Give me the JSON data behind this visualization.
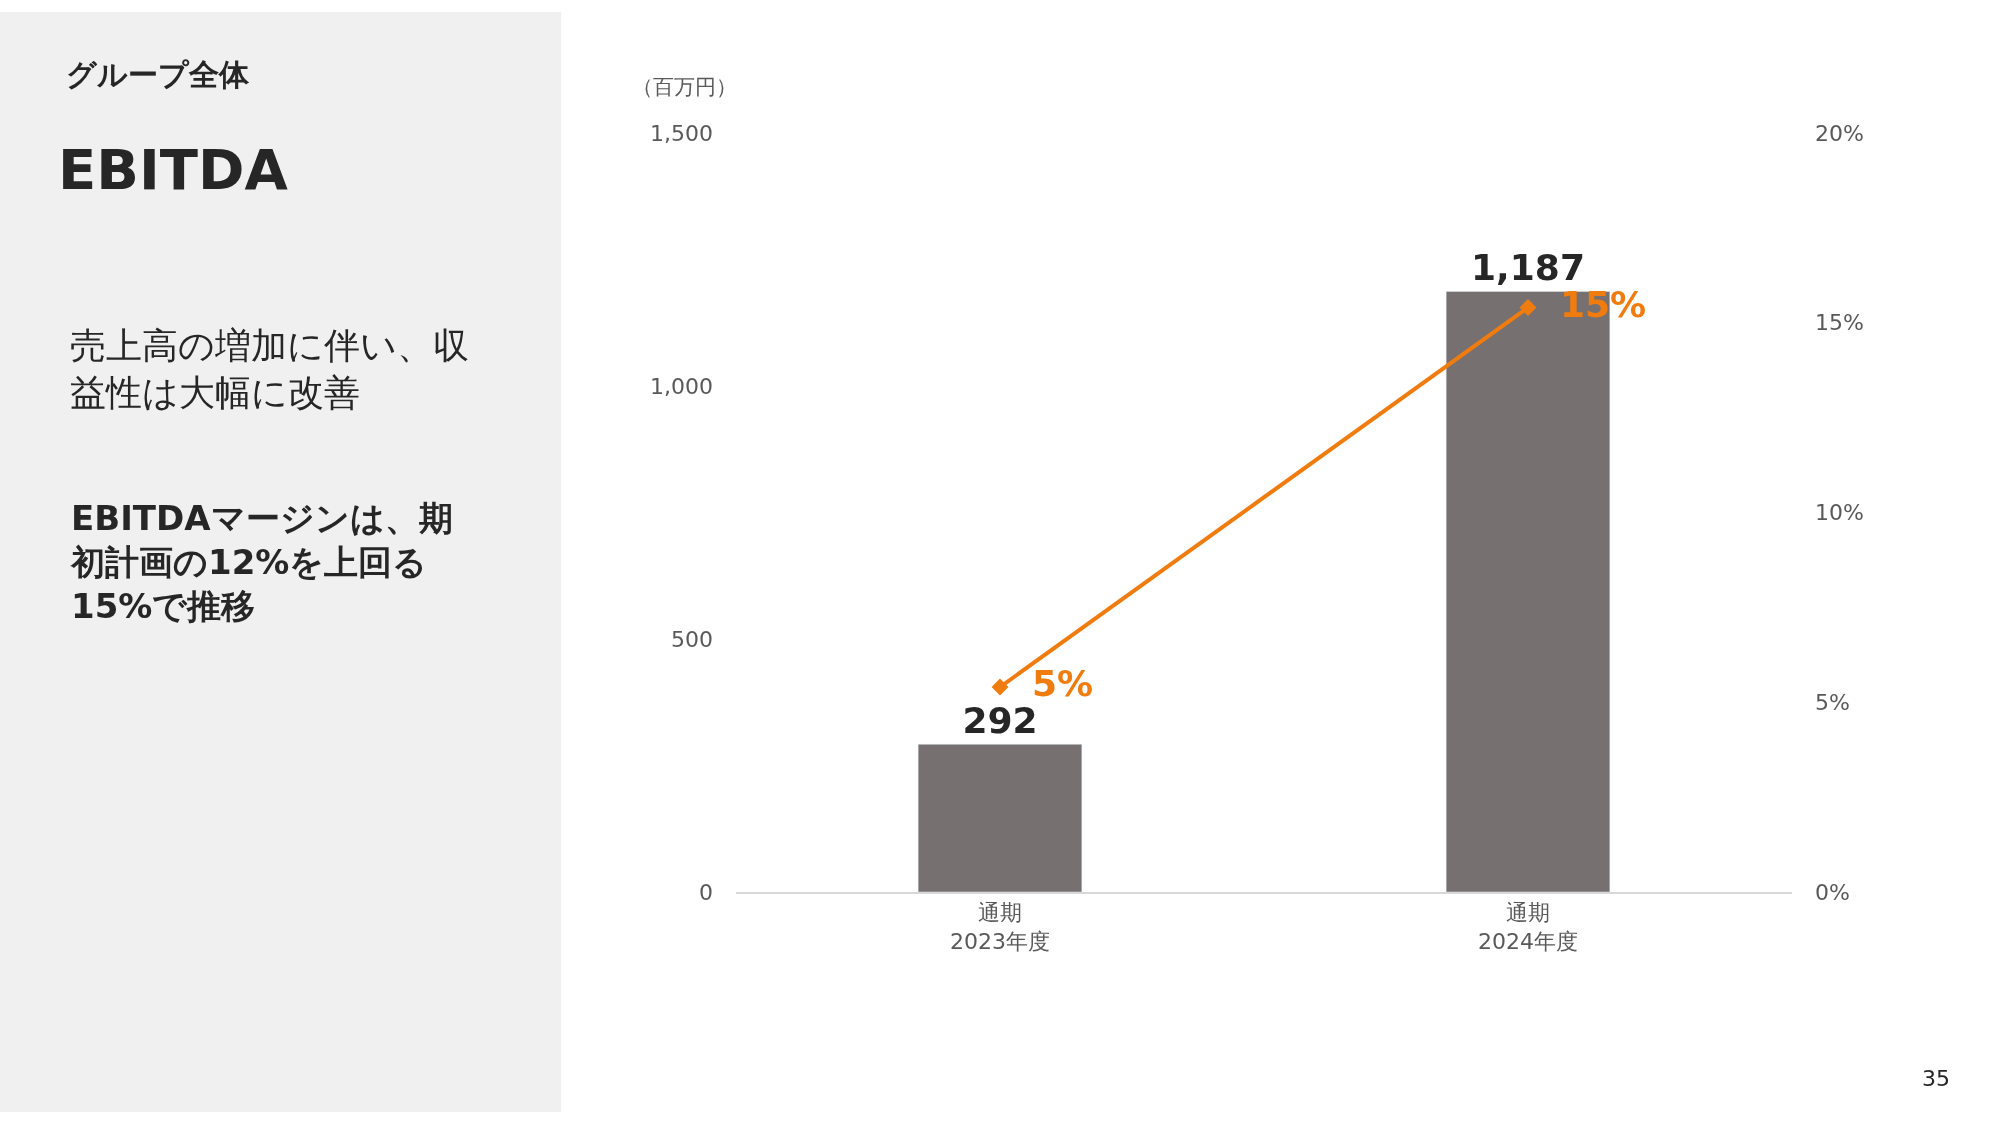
{
  "chart_data": {
    "type": "bar",
    "title": "EBITDA",
    "subtitle": "グループ全体",
    "ylabel": "（百万円）",
    "categories": [
      "通期\n2023年度",
      "通期\n2024年度"
    ],
    "series": [
      {
        "color": "#767070",
        "values": [
          292,
          1187
        ],
        "value_labels": [
          "292",
          "1,187"
        ]
      },
      {
        "type": "line",
        "axis": "y2",
        "color": "#f07c0f",
        "values": [
          5.4,
          15.4
        ],
        "value_labels": [
          "5%",
          "15%"
        ]
      }
    ],
    "ylim": [
      0,
      1500
    ],
    "yticks": [
      0,
      {
        "value": 500,
        "label": "500"
      },
      {
        "value": 1000,
        "label": "1,000"
      },
      {
        "value": 1500,
        "label": "1,500"
      }
    ],
    "y2lim": [
      0,
      20
    ],
    "y2ticks": [
      {
        "value": 0,
        "label": "0%"
      },
      {
        "value": 5,
        "label": "5%"
      },
      {
        "value": 10,
        "label": "10%"
      },
      {
        "value": 15,
        "label": "15%"
      },
      {
        "value": 20,
        "label": "20%"
      }
    ],
    "marker": "diamond",
    "line_style": "solid",
    "legend": false,
    "annotations": [
      "売上高の増加に伴い、収益性は大幅に改善",
      "EBITDAマージンは、期初計画の12%を上回る15%で推移",
      "35"
    ]
  }
}
